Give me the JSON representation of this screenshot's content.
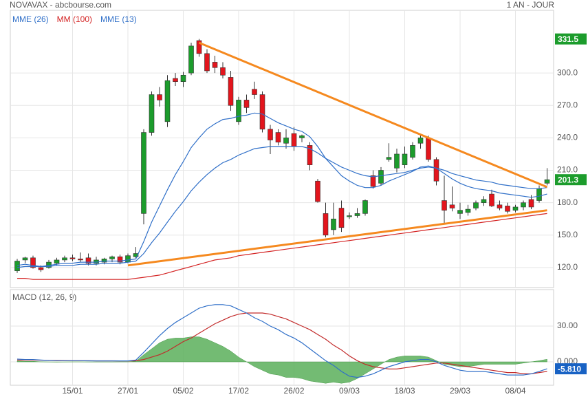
{
  "header": {
    "title": "NOVAVAX - abcbourse.com",
    "period": "1 AN - JOUR"
  },
  "chart_data": [
    {
      "type": "candlestick",
      "categories": [
        null,
        null,
        null,
        null,
        null,
        null,
        null,
        "15/01",
        null,
        null,
        null,
        null,
        null,
        null,
        "27/01",
        null,
        null,
        null,
        null,
        null,
        null,
        "05/02",
        null,
        null,
        null,
        null,
        null,
        null,
        "17/02",
        null,
        null,
        null,
        null,
        null,
        null,
        "26/02",
        null,
        null,
        null,
        null,
        null,
        null,
        "09/03",
        null,
        null,
        null,
        null,
        null,
        null,
        "18/03",
        null,
        null,
        null,
        null,
        null,
        null,
        "29/03",
        null,
        null,
        null,
        null,
        null,
        null,
        "08/04",
        null,
        null,
        null,
        null
      ],
      "open": [
        117,
        127,
        129,
        120,
        120,
        124,
        127,
        129,
        128,
        129,
        124,
        125,
        128,
        130,
        125,
        130,
        170,
        245,
        280,
        255,
        295,
        292,
        300,
        330,
        318,
        310,
        305,
        296,
        255,
        275,
        285,
        280,
        248,
        245,
        235,
        244,
        240,
        233,
        200,
        170,
        155,
        175,
        167,
        168,
        170,
        205,
        198,
        220,
        212,
        215,
        222,
        235,
        240,
        220,
        182,
        178,
        170,
        171,
        175,
        180,
        188,
        178,
        177,
        173,
        176,
        183,
        182,
        198
      ],
      "high": [
        128,
        130,
        131,
        122,
        127,
        129,
        131,
        132,
        134,
        133,
        130,
        129,
        131,
        132,
        133,
        139,
        248,
        283,
        287,
        298,
        300,
        301,
        328,
        331.5,
        322,
        316,
        310,
        302,
        278,
        280,
        292,
        283,
        252,
        248,
        248,
        250,
        243,
        236,
        202,
        180,
        180,
        182,
        171,
        175,
        183,
        210,
        213,
        235,
        230,
        232,
        236,
        243,
        242,
        222,
        205,
        195,
        180,
        178,
        182,
        186,
        192,
        182,
        180,
        178,
        182,
        187,
        196,
        212
      ],
      "low": [
        115,
        124,
        119,
        116,
        119,
        122,
        125,
        126,
        125,
        122,
        122,
        123,
        125,
        123,
        124,
        129,
        160,
        242,
        269,
        250,
        288,
        287,
        298,
        315,
        300,
        300,
        295,
        265,
        252,
        263,
        276,
        245,
        225,
        233,
        230,
        228,
        236,
        210,
        180,
        148,
        150,
        153,
        165,
        166,
        168,
        193,
        196,
        218,
        208,
        212,
        220,
        230,
        218,
        196,
        160,
        172,
        165,
        168,
        173,
        177,
        176,
        173,
        170,
        171,
        173,
        174,
        180,
        196
      ],
      "close": [
        126,
        129,
        120,
        118,
        125,
        127,
        129,
        128,
        127,
        124,
        127,
        128,
        130,
        125,
        131,
        133,
        245,
        280,
        275,
        293,
        292,
        298,
        325,
        318,
        302,
        305,
        298,
        270,
        275,
        268,
        280,
        248,
        238,
        236,
        240,
        232,
        242,
        215,
        181,
        150,
        165,
        157,
        168,
        170,
        182,
        195,
        210,
        222,
        225,
        225,
        233,
        240,
        220,
        200,
        173,
        175,
        173,
        174,
        180,
        183,
        177,
        175,
        172,
        176,
        180,
        176,
        193,
        201.3
      ],
      "up_color": "#1c9c2c",
      "down_color": "#e3151d",
      "ylim": [
        101.5,
        358
      ],
      "yticks": [
        {
          "value": 120,
          "label": "120.0"
        },
        {
          "value": 150,
          "label": "150.0"
        },
        {
          "value": 180,
          "label": "180.0"
        },
        {
          "value": 210,
          "label": "210.0"
        },
        {
          "value": 240,
          "label": "240.0"
        },
        {
          "value": 270,
          "label": "270.0"
        },
        {
          "value": 300,
          "label": "300.0"
        }
      ],
      "grid": true,
      "series": [
        {
          "name": "MME (26)",
          "color": "#2f6fc8",
          "values": [
            120,
            121,
            121,
            121,
            121,
            122,
            122,
            122,
            123,
            123,
            123,
            124,
            124,
            124,
            125,
            126,
            133,
            143,
            152,
            162,
            172,
            181,
            191,
            199,
            206,
            212,
            217,
            220,
            224,
            227,
            230,
            231,
            232,
            232,
            232,
            232,
            232,
            230,
            226,
            221,
            217,
            213,
            210,
            207,
            205,
            204,
            205,
            206,
            207,
            208,
            210,
            212,
            213,
            212,
            210,
            207,
            205,
            203,
            201,
            200,
            199,
            197,
            196,
            195,
            194,
            193,
            193,
            194
          ]
        },
        {
          "name": "MM (100)",
          "color": "#d42424",
          "values": [
            110,
            110,
            109,
            109,
            109,
            109,
            109,
            109,
            109,
            109,
            109,
            109,
            109,
            109,
            109,
            110,
            111,
            112,
            113,
            115,
            117,
            119,
            121,
            123,
            125,
            127,
            128,
            129,
            131,
            132,
            133,
            134,
            135,
            136,
            137,
            138,
            139,
            140,
            141,
            142,
            143,
            144,
            145,
            146,
            147,
            148,
            149,
            150,
            151,
            152,
            153,
            154,
            155,
            156,
            157,
            158,
            159,
            160,
            161,
            162,
            163,
            164,
            165,
            166,
            167,
            168,
            169,
            170
          ]
        },
        {
          "name": "MME (13)",
          "color": "#2f6fc8",
          "values": [
            122,
            123,
            122,
            121,
            122,
            123,
            124,
            124,
            125,
            125,
            125,
            126,
            126,
            126,
            127,
            128,
            144,
            162,
            177,
            192,
            206,
            218,
            231,
            240,
            248,
            253,
            257,
            258,
            260,
            261,
            263,
            262,
            258,
            254,
            251,
            248,
            246,
            241,
            232,
            221,
            213,
            205,
            200,
            196,
            194,
            194,
            196,
            200,
            203,
            206,
            209,
            213,
            214,
            212,
            207,
            202,
            198,
            195,
            193,
            192,
            191,
            189,
            188,
            187,
            186,
            185,
            186,
            188
          ]
        }
      ],
      "trendlines": [
        {
          "color": "#f5891f",
          "x": [
            23,
            67
          ],
          "values": [
            328,
            194.5
          ]
        },
        {
          "color": "#f5891f",
          "x": [
            14,
            67
          ],
          "values": [
            122,
            173
          ]
        }
      ],
      "markers": [
        {
          "value": 331.5,
          "color": "#1c9c2c"
        },
        {
          "value": 201.3,
          "color": "#1c9c2c"
        }
      ]
    },
    {
      "type": "macd",
      "title": "MACD (12, 26, 9)",
      "macd": [
        2.3,
        2,
        2,
        1.5,
        1.2,
        1,
        1,
        1,
        1,
        0.9,
        0.8,
        0.8,
        0.8,
        0.8,
        0.8,
        1.5,
        8,
        15,
        22,
        28,
        33,
        37,
        41,
        45,
        47,
        48,
        48,
        47,
        44,
        41,
        37,
        34,
        30,
        27,
        23,
        20,
        16,
        11,
        6,
        1,
        -3,
        -8,
        -12,
        -13,
        -12,
        -10,
        -7,
        -4,
        -2,
        0,
        1,
        2,
        2,
        0,
        -3,
        -5,
        -7,
        -8,
        -8,
        -8,
        -9,
        -10,
        -11,
        -11,
        -11,
        -10,
        -8,
        -5.81
      ],
      "signal": [
        1.5,
        1.5,
        1.5,
        1.4,
        1.3,
        1.2,
        1.1,
        1,
        1,
        1,
        0.9,
        0.9,
        0.9,
        0.8,
        0.8,
        0.9,
        2,
        4,
        6,
        9,
        13,
        17,
        20,
        24,
        28,
        32,
        35,
        38,
        40,
        41,
        41,
        41,
        40,
        38,
        36,
        33,
        30,
        27,
        23,
        19,
        14,
        10,
        5,
        1,
        -2,
        -4,
        -5,
        -6,
        -6,
        -5,
        -4,
        -3,
        -2,
        -1,
        -1,
        -2,
        -3,
        -4,
        -5,
        -6,
        -7,
        -8,
        -9,
        -9,
        -10,
        -10,
        -9,
        -8
      ],
      "histogram": [
        0.8,
        0.5,
        0.5,
        0.1,
        -0.1,
        -0.2,
        -0.1,
        0,
        0,
        -0.1,
        -0.1,
        -0.1,
        -0.1,
        0,
        0,
        0.6,
        6,
        11,
        16,
        19,
        20,
        20,
        21,
        21,
        19,
        16,
        13,
        9,
        4,
        0,
        -4,
        -7,
        -10,
        -11,
        -13,
        -13,
        -14,
        -16,
        -17,
        -18,
        -17,
        -18,
        -17,
        -14,
        -10,
        -6,
        -2,
        2,
        4,
        5,
        5,
        5,
        4,
        1,
        -2,
        -3,
        -4,
        -4,
        -3,
        -2,
        -2,
        -2,
        -2,
        -2,
        -1,
        0,
        1,
        2.2
      ],
      "macd_color": "#2f6fc8",
      "signal_color": "#c22a2a",
      "histogram_color": "#5aaf5a",
      "ylim": [
        -19.6,
        60.6
      ],
      "yticks": [
        {
          "value": 0,
          "label": "0.000"
        },
        {
          "value": 30,
          "label": "30.00"
        }
      ],
      "marker": {
        "value": -5.81,
        "label": "-5.810",
        "color": "#1862c4"
      }
    }
  ]
}
